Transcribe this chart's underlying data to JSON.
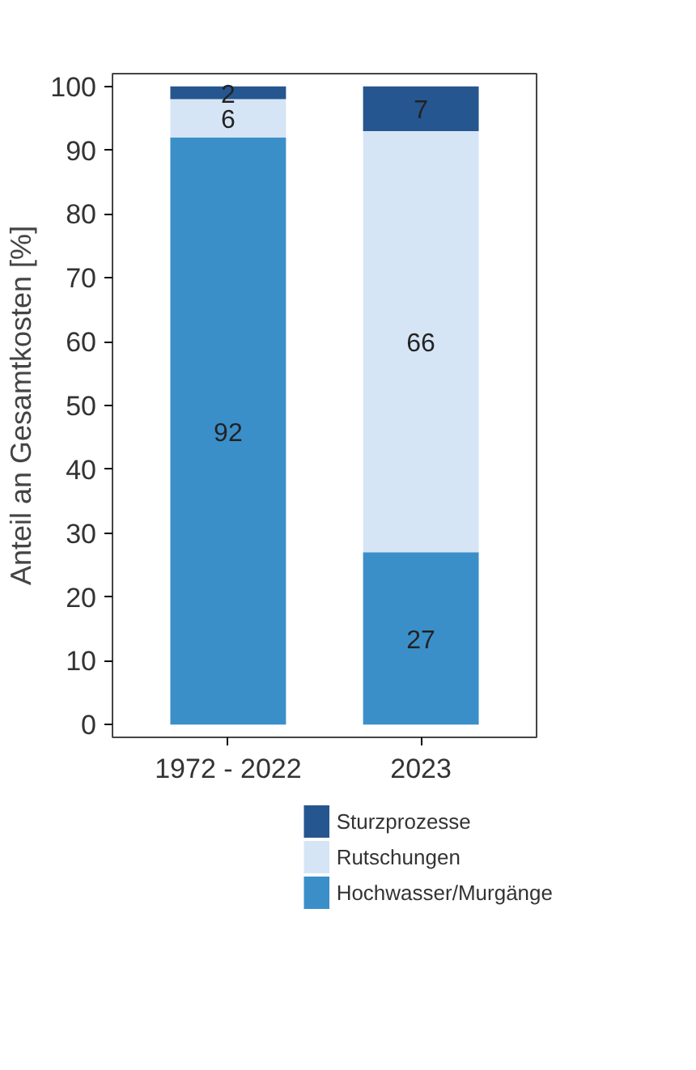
{
  "chart_data": {
    "type": "bar",
    "stacked": true,
    "ylabel": "Anteil an Gesamtkosten [%]",
    "categories": [
      "1972 - 2022",
      "2023"
    ],
    "series": [
      {
        "name": "Hochwasser/Murgänge",
        "color": "#3b8fc9",
        "values": [
          92,
          27
        ]
      },
      {
        "name": "Rutschungen",
        "color": "#d5e5f6",
        "values": [
          6,
          66
        ]
      },
      {
        "name": "Sturzprozesse",
        "color": "#25568f",
        "values": [
          2,
          7
        ]
      }
    ],
    "ylim": [
      -2,
      102
    ],
    "yticks": [
      0,
      10,
      20,
      30,
      40,
      50,
      60,
      70,
      80,
      90,
      100
    ],
    "data_labels": true,
    "legend": "bottom",
    "grid": false
  }
}
